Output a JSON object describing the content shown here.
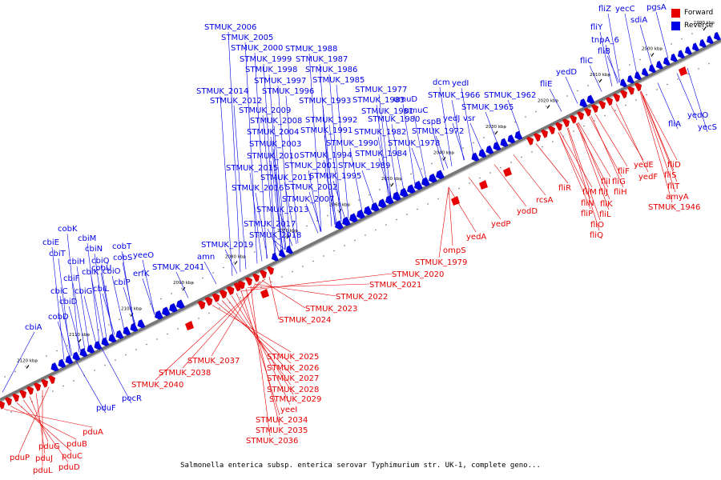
{
  "caption": "Salmonella enterica subsp. enterica serovar Typhimurium str. UK-1, complete geno...",
  "legend": [
    {
      "label": "Forward",
      "color": "#e60000"
    },
    {
      "label": "Reverse",
      "color": "#0000e6"
    }
  ],
  "colors": {
    "forward": "#e60000",
    "reverse": "#0000e6",
    "backbone": "#808080"
  },
  "ticks": [
    "1990 kbp",
    "2000 kbp",
    "2010 kbp",
    "2020 kbp",
    "2030 kbp",
    "2040 kbp",
    "2050 kbp",
    "2060 kbp",
    "2070 kbp",
    "2080 kbp",
    "2090 kbp",
    "2100 kbp",
    "2110 kbp",
    "2120 kbp"
  ],
  "reverse_labels": [
    "fliZ",
    "yecC",
    "pgsA",
    "fliY",
    "sdiA",
    "tnpA_6",
    "fliB",
    "fliC",
    "yedD",
    "fliE",
    "STMUK_1962",
    "STMUK_1965",
    "STMUK_1966",
    "yedI",
    "dcm",
    "yedJ",
    "vsr",
    "cspB",
    "STMUK_1972",
    "umuC",
    "umuD",
    "STMUK_1977",
    "STMUK_1978",
    "STMUK_1980",
    "STMUK_1981",
    "STMUK_1982",
    "STMUK_1983",
    "STMUK_1984",
    "STMUK_1985",
    "STMUK_1986",
    "STMUK_1987",
    "STMUK_1988",
    "STMUK_1989",
    "STMUK_1990",
    "STMUK_1991",
    "STMUK_1992",
    "STMUK_1993",
    "STMUK_1994",
    "STMUK_1995",
    "STMUK_1996",
    "STMUK_1997",
    "STMUK_1998",
    "STMUK_1999",
    "STMUK_2000",
    "STMUK_2001",
    "STMUK_2002",
    "STMUK_2003",
    "STMUK_2004",
    "STMUK_2005",
    "STMUK_2006",
    "STMUK_2007",
    "STMUK_2008",
    "STMUK_2009",
    "STMUK_2010",
    "STMUK_2011",
    "STMUK_2012",
    "STMUK_2013",
    "STMUK_2014",
    "STMUK_2015",
    "STMUK_2016",
    "STMUK_2017",
    "STMUK_2018",
    "STMUK_2019",
    "amn",
    "STMUK_2041",
    "erfK",
    "yeeO",
    "cobT",
    "cobS",
    "cobU",
    "cbiP",
    "cobK",
    "cbiM",
    "cbiN",
    "cbiQ",
    "cbiO",
    "cbiE",
    "cbiT",
    "cbiH",
    "cbiK",
    "cbiL",
    "cbiF",
    "cbiG",
    "cbiC",
    "cbiD",
    "cobD",
    "cbiA",
    "pocR",
    "pduF",
    "yedO",
    "yecS",
    "fliA"
  ],
  "forward_labels": [
    "fliD",
    "fliS",
    "fliT",
    "amyA",
    "STMUK_1946",
    "yedE",
    "yedF",
    "fliF",
    "fliG",
    "fliH",
    "fliI",
    "fliJ",
    "fliK",
    "fliL",
    "fliM",
    "fliN",
    "fliO",
    "fliP",
    "fliQ",
    "fliR",
    "rcsA",
    "yodD",
    "yedP",
    "yedA",
    "ompS",
    "STMUK_1979",
    "STMUK_2020",
    "STMUK_2021",
    "STMUK_2022",
    "STMUK_2023",
    "STMUK_2024",
    "STMUK_2025",
    "STMUK_2026",
    "STMUK_2027",
    "STMUK_2028",
    "STMUK_2029",
    "yeeI",
    "STMUK_2034",
    "STMUK_2035",
    "STMUK_2036",
    "STMUK_2037",
    "STMUK_2038",
    "STMUK_2040",
    "pduA",
    "pduB",
    "pduC",
    "pduD",
    "pduG",
    "pduJ",
    "pduL",
    "pduP"
  ]
}
